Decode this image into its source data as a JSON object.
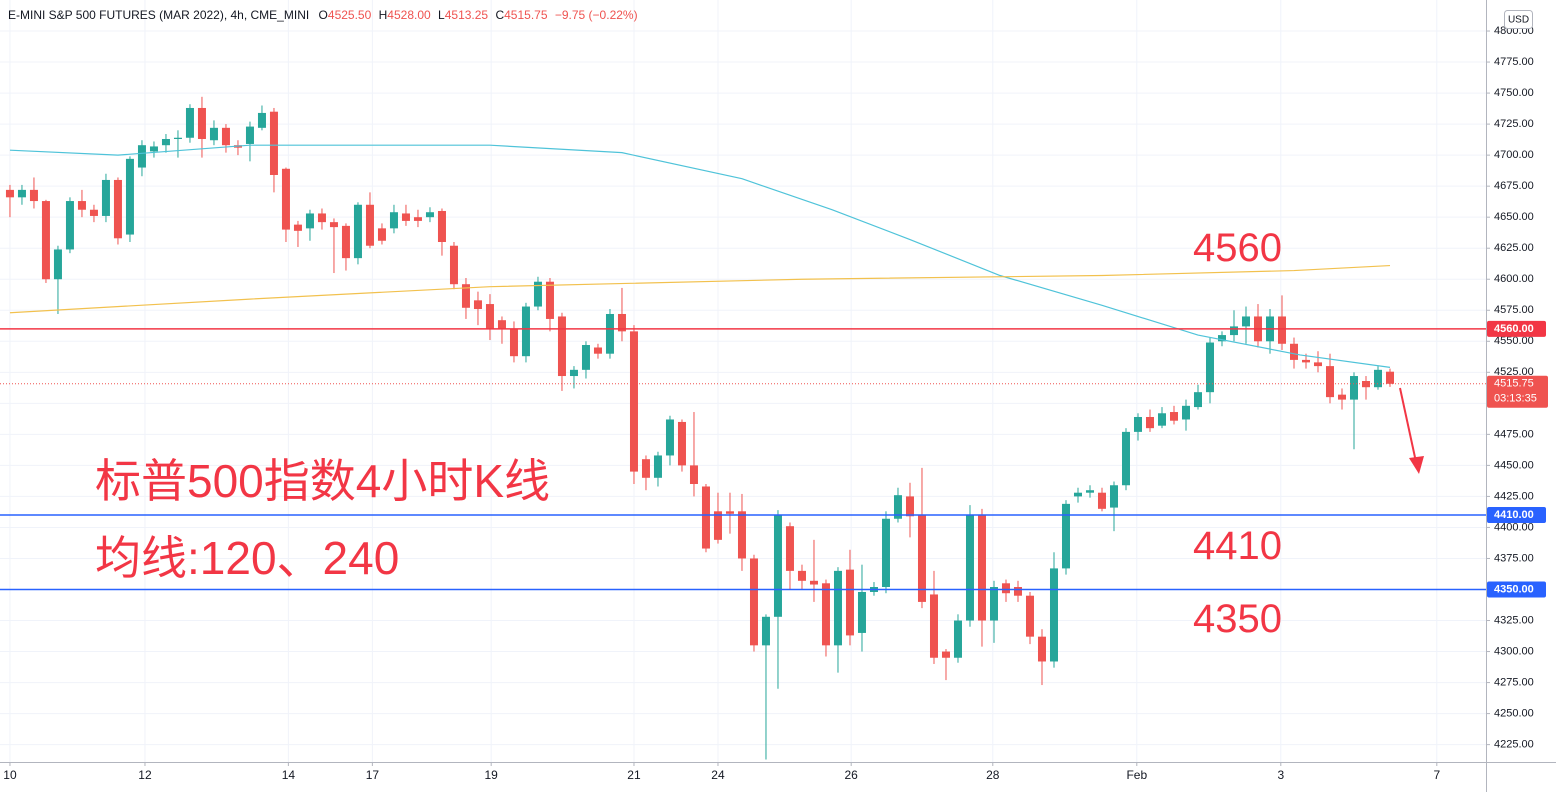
{
  "chart_data": {
    "type": "candlestick",
    "header": {
      "symbol": "E-MINI S&P 500 FUTURES (MAR 2022), 4h, CME_MINI",
      "ohlc": [
        {
          "prefix": "O",
          "value": "4525.50"
        },
        {
          "prefix": "H",
          "value": "4528.00"
        },
        {
          "prefix": "L",
          "value": "4513.25"
        },
        {
          "prefix": "C",
          "value": "4515.75"
        }
      ],
      "change": "−9.75 (−0.22%)"
    },
    "currency": "USD",
    "title_lines": [
      "标普500指数4小时K线",
      "均线:120、240"
    ],
    "up_color": "#26a69a",
    "down_color": "#ef5350",
    "candles": [
      [
        4672,
        4676,
        4650,
        4666
      ],
      [
        4666,
        4676,
        4660,
        4672
      ],
      [
        4672,
        4682,
        4657,
        4663
      ],
      [
        4663,
        4664,
        4597,
        4600
      ],
      [
        4600,
        4627,
        4572,
        4624
      ],
      [
        4624,
        4666,
        4621,
        4663
      ],
      [
        4663,
        4672,
        4650,
        4656
      ],
      [
        4656,
        4660,
        4646,
        4651
      ],
      [
        4651,
        4685,
        4646,
        4680
      ],
      [
        4680,
        4682,
        4628,
        4633
      ],
      [
        4636,
        4699,
        4630,
        4697
      ],
      [
        4690,
        4712,
        4683,
        4708
      ],
      [
        4703,
        4711,
        4698,
        4707
      ],
      [
        4708,
        4717,
        4702,
        4713
      ],
      [
        4713,
        4720,
        4698,
        4714
      ],
      [
        4714,
        4741,
        4710,
        4738
      ],
      [
        4738,
        4747,
        4698,
        4713
      ],
      [
        4712,
        4728,
        4708,
        4722
      ],
      [
        4722,
        4725,
        4702,
        4708
      ],
      [
        4708,
        4712,
        4700,
        4706
      ],
      [
        4709,
        4727,
        4695,
        4723
      ],
      [
        4722,
        4740,
        4720,
        4734
      ],
      [
        4735,
        4738,
        4670,
        4684
      ],
      [
        4689,
        4690,
        4630,
        4640
      ],
      [
        4644,
        4647,
        4626,
        4639
      ],
      [
        4641,
        4656,
        4631,
        4653
      ],
      [
        4653,
        4657,
        4640,
        4646
      ],
      [
        4646,
        4649,
        4605,
        4642
      ],
      [
        4643,
        4645,
        4607,
        4617
      ],
      [
        4617,
        4662,
        4612,
        4660
      ],
      [
        4660,
        4670,
        4625,
        4627
      ],
      [
        4641,
        4645,
        4628,
        4631
      ],
      [
        4641,
        4660,
        4637,
        4654
      ],
      [
        4653,
        4660,
        4643,
        4647
      ],
      [
        4650,
        4656,
        4642,
        4647
      ],
      [
        4650,
        4658,
        4646,
        4654
      ],
      [
        4655,
        4657,
        4619,
        4630
      ],
      [
        4627,
        4630,
        4592,
        4596
      ],
      [
        4596,
        4601,
        4568,
        4577
      ],
      [
        4583,
        4590,
        4563,
        4576
      ],
      [
        4580,
        4588,
        4551,
        4560
      ],
      [
        4567,
        4570,
        4548,
        4560
      ],
      [
        4560,
        4566,
        4533,
        4538
      ],
      [
        4538,
        4581,
        4533,
        4578
      ],
      [
        4578,
        4602,
        4575,
        4598
      ],
      [
        4598,
        4601,
        4558,
        4568
      ],
      [
        4570,
        4573,
        4510,
        4522
      ],
      [
        4522,
        4530,
        4512,
        4527
      ],
      [
        4527,
        4550,
        4520,
        4547
      ],
      [
        4545,
        4548,
        4536,
        4540
      ],
      [
        4540,
        4576,
        4536,
        4572
      ],
      [
        4572,
        4593,
        4550,
        4558
      ],
      [
        4558,
        4563,
        4435,
        4445
      ],
      [
        4455,
        4458,
        4430,
        4440
      ],
      [
        4440,
        4461,
        4433,
        4458
      ],
      [
        4458,
        4490,
        4450,
        4487
      ],
      [
        4485,
        4487,
        4445,
        4450
      ],
      [
        4450,
        4493,
        4425,
        4435
      ],
      [
        4433,
        4435,
        4380,
        4383
      ],
      [
        4413,
        4428,
        4387,
        4390
      ],
      [
        4413,
        4428,
        4395,
        4411
      ],
      [
        4413,
        4427,
        4365,
        4375
      ],
      [
        4375,
        4378,
        4300,
        4305
      ],
      [
        4305,
        4330,
        4213,
        4328
      ],
      [
        4328,
        4414,
        4270,
        4410
      ],
      [
        4401,
        4404,
        4350,
        4365
      ],
      [
        4365,
        4370,
        4350,
        4357
      ],
      [
        4357,
        4390,
        4340,
        4354
      ],
      [
        4355,
        4358,
        4296,
        4305
      ],
      [
        4305,
        4368,
        4283,
        4365
      ],
      [
        4366,
        4382,
        4305,
        4313
      ],
      [
        4315,
        4370,
        4300,
        4348
      ],
      [
        4348,
        4356,
        4345,
        4352
      ],
      [
        4352,
        4413,
        4347,
        4407
      ],
      [
        4407,
        4432,
        4404,
        4426
      ],
      [
        4425,
        4436,
        4392,
        4409
      ],
      [
        4410,
        4448,
        4335,
        4340
      ],
      [
        4346,
        4365,
        4290,
        4295
      ],
      [
        4300,
        4302,
        4277,
        4295
      ],
      [
        4295,
        4330,
        4291,
        4325
      ],
      [
        4325,
        4418,
        4320,
        4410
      ],
      [
        4410,
        4415,
        4304,
        4325
      ],
      [
        4325,
        4357,
        4307,
        4352
      ],
      [
        4355,
        4358,
        4340,
        4347
      ],
      [
        4352,
        4357,
        4340,
        4345
      ],
      [
        4345,
        4348,
        4306,
        4312
      ],
      [
        4312,
        4318,
        4273,
        4292
      ],
      [
        4292,
        4380,
        4287,
        4367
      ],
      [
        4367,
        4422,
        4362,
        4419
      ],
      [
        4425,
        4432,
        4420,
        4428
      ],
      [
        4428,
        4434,
        4424,
        4430
      ],
      [
        4428,
        4432,
        4413,
        4415
      ],
      [
        4416,
        4437,
        4397,
        4434
      ],
      [
        4434,
        4480,
        4430,
        4477
      ],
      [
        4477,
        4492,
        4470,
        4489
      ],
      [
        4489,
        4495,
        4477,
        4480
      ],
      [
        4482,
        4497,
        4480,
        4492
      ],
      [
        4493,
        4498,
        4483,
        4486
      ],
      [
        4487,
        4503,
        4478,
        4498
      ],
      [
        4497,
        4515,
        4495,
        4509
      ],
      [
        4509,
        4553,
        4500,
        4549
      ],
      [
        4550,
        4558,
        4546,
        4555
      ],
      [
        4555,
        4575,
        4550,
        4562
      ],
      [
        4562,
        4578,
        4548,
        4570
      ],
      [
        4570,
        4580,
        4545,
        4550
      ],
      [
        4550,
        4576,
        4540,
        4570
      ],
      [
        4570,
        4587,
        4543,
        4548
      ],
      [
        4548,
        4553,
        4528,
        4535
      ],
      [
        4535,
        4540,
        4528,
        4533
      ],
      [
        4533,
        4542,
        4525,
        4530
      ],
      [
        4530,
        4540,
        4500,
        4505
      ],
      [
        4507,
        4512,
        4495,
        4503
      ],
      [
        4503,
        4525,
        4463,
        4522
      ],
      [
        4518,
        4522,
        4503,
        4513
      ],
      [
        4513,
        4530,
        4511,
        4527
      ],
      [
        4525.5,
        4528,
        4513.25,
        4515.75
      ]
    ],
    "series": [
      {
        "name": "MA120",
        "color": "#4fc3d9",
        "x": [
          0,
          9,
          20,
          40,
          51,
          61,
          68.5,
          75,
          82.5,
          91,
          99,
          107.5,
          115
        ],
        "values": [
          4704,
          4700,
          4708,
          4708,
          4702,
          4681,
          4656,
          4632,
          4603,
          4579,
          4555,
          4539,
          4529
        ]
      },
      {
        "name": "MA240",
        "color": "#f2c14e",
        "x": [
          0,
          20,
          40,
          66,
          91,
          107,
          115
        ],
        "values": [
          4573,
          4584,
          4594,
          4600,
          4603,
          4607,
          4611
        ]
      }
    ],
    "levels": [
      {
        "value": 4560,
        "label": "4560.00",
        "annotation": "4560",
        "color": "#f23645"
      },
      {
        "value": 4410,
        "label": "4410.00",
        "annotation": "4410",
        "color": "#2962ff"
      },
      {
        "value": 4350,
        "label": "4350.00",
        "annotation": "4350",
        "color": "#2962ff"
      }
    ],
    "last": {
      "value": 4515.75,
      "label": "4515.75",
      "countdown": "03:13:35",
      "color": "#ef5350"
    },
    "xlim": [
      -0.83,
      123
    ],
    "xticks": [
      {
        "value": 0,
        "label": "10"
      },
      {
        "value": 11.25,
        "label": "12"
      },
      {
        "value": 23.2,
        "label": "14"
      },
      {
        "value": 30.2,
        "label": "17"
      },
      {
        "value": 40.1,
        "label": "19"
      },
      {
        "value": 52,
        "label": "21"
      },
      {
        "value": 59,
        "label": "24"
      },
      {
        "value": 70.1,
        "label": "26"
      },
      {
        "value": 81.9,
        "label": "28"
      },
      {
        "value": 93.9,
        "label": "Feb"
      },
      {
        "value": 105.9,
        "label": "3"
      },
      {
        "value": 118.9,
        "label": "7"
      }
    ],
    "ylim": [
      4211,
      4825
    ],
    "yticks": [
      {
        "value": 4225,
        "label": "4225.00"
      },
      {
        "value": 4250,
        "label": "4250.00"
      },
      {
        "value": 4275,
        "label": "4275.00"
      },
      {
        "value": 4300,
        "label": "4300.00"
      },
      {
        "value": 4325,
        "label": "4325.00"
      },
      {
        "value": 4350,
        "label": "4350.00"
      },
      {
        "value": 4375,
        "label": "4375.00"
      },
      {
        "value": 4400,
        "label": "4400.00"
      },
      {
        "value": 4425,
        "label": "4425.00"
      },
      {
        "value": 4450,
        "label": "4450.00"
      },
      {
        "value": 4475,
        "label": "4475.00"
      },
      {
        "value": 4500,
        "label": "4500.00"
      },
      {
        "value": 4525,
        "label": "4525.00"
      },
      {
        "value": 4550,
        "label": "4550.00"
      },
      {
        "value": 4575,
        "label": "4575.00"
      },
      {
        "value": 4600,
        "label": "4600.00"
      },
      {
        "value": 4625,
        "label": "4625.00"
      },
      {
        "value": 4650,
        "label": "4650.00"
      },
      {
        "value": 4675,
        "label": "4675.00"
      },
      {
        "value": 4700,
        "label": "4700.00"
      },
      {
        "value": 4725,
        "label": "4725.00"
      },
      {
        "value": 4750,
        "label": "4750.00"
      },
      {
        "value": 4775,
        "label": "4775.00"
      },
      {
        "value": 4800,
        "label": "4800.00"
      }
    ],
    "grid": true
  }
}
